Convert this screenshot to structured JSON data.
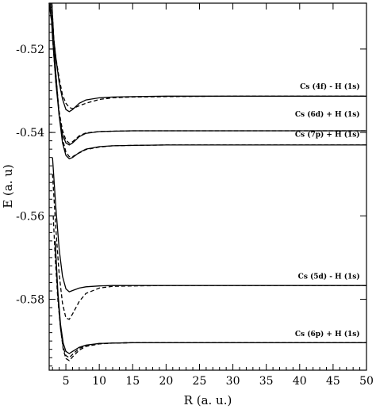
{
  "chart_data": {
    "type": "line",
    "xlabel": "R (a. u.)",
    "ylabel": "E (a. u)",
    "xlim": [
      2.5,
      50
    ],
    "ylim": [
      -0.597,
      -0.509
    ],
    "x_ticks": [
      5,
      10,
      15,
      20,
      25,
      30,
      35,
      40,
      45,
      50
    ],
    "x_tick_labels": [
      "5",
      "10",
      "15",
      "20",
      "25",
      "30",
      "35",
      "40",
      "45",
      "50"
    ],
    "y_ticks": [
      -0.52,
      -0.54,
      -0.56,
      -0.58
    ],
    "y_tick_labels": [
      "-0.52",
      "-0.54",
      "-0.56",
      "-0.58"
    ],
    "annotations": [
      {
        "text": "Cs (4f) - H (1s)",
        "x": 49,
        "y": -0.5295
      },
      {
        "text": "Cs (6d) + H (1s)",
        "x": 49,
        "y": -0.5362
      },
      {
        "text": "Cs (7p) + H (1s)",
        "x": 49,
        "y": -0.541
      },
      {
        "text": "Cs (5d) - H (1s)",
        "x": 49,
        "y": -0.575
      },
      {
        "text": "Cs (6p) + H (1s)",
        "x": 49,
        "y": -0.5888
      }
    ],
    "series": [
      {
        "style": "solid",
        "x": [
          2.5,
          3,
          3.5,
          4,
          4.5,
          5,
          5.5,
          6,
          7,
          8,
          10,
          12,
          15,
          20,
          30,
          40,
          50
        ],
        "y": [
          -0.509,
          -0.515,
          -0.522,
          -0.528,
          -0.532,
          -0.5345,
          -0.535,
          -0.5345,
          -0.533,
          -0.5322,
          -0.5317,
          -0.5315,
          -0.5314,
          -0.5313,
          -0.5313,
          -0.5313,
          -0.5313
        ]
      },
      {
        "style": "dashed",
        "x": [
          2.5,
          3,
          3.5,
          4,
          4.5,
          5,
          5.5,
          6,
          7,
          8,
          10,
          12,
          15,
          20,
          30,
          40,
          50
        ],
        "y": [
          -0.509,
          -0.515,
          -0.522,
          -0.527,
          -0.531,
          -0.533,
          -0.534,
          -0.5343,
          -0.5336,
          -0.533,
          -0.5321,
          -0.5317,
          -0.5315,
          -0.5314,
          -0.5313,
          -0.5313,
          -0.5313
        ]
      },
      {
        "style": "solid",
        "x": [
          2.7,
          3,
          3.5,
          4,
          4.5,
          5,
          5.5,
          6,
          7,
          8,
          10,
          12,
          15,
          20,
          30,
          40,
          50
        ],
        "y": [
          -0.509,
          -0.517,
          -0.528,
          -0.536,
          -0.5405,
          -0.5425,
          -0.543,
          -0.5425,
          -0.541,
          -0.5402,
          -0.5398,
          -0.5397,
          -0.5396,
          -0.5396,
          -0.5396,
          -0.5396,
          -0.5396
        ]
      },
      {
        "style": "dashed",
        "x": [
          2.7,
          3,
          3.5,
          4,
          4.5,
          5,
          5.5,
          6,
          7,
          8,
          10,
          12,
          15,
          20,
          30,
          40,
          50
        ],
        "y": [
          -0.509,
          -0.517,
          -0.528,
          -0.535,
          -0.5395,
          -0.5418,
          -0.5426,
          -0.5422,
          -0.5408,
          -0.5401,
          -0.5398,
          -0.5397,
          -0.5396,
          -0.5396,
          -0.5396,
          -0.5396,
          -0.5396
        ]
      },
      {
        "style": "solid",
        "x": [
          2.9,
          3.2,
          3.5,
          4,
          4.5,
          5,
          5.5,
          6,
          7,
          8,
          10,
          12,
          15,
          20,
          30,
          40,
          50
        ],
        "y": [
          -0.509,
          -0.518,
          -0.526,
          -0.536,
          -0.5425,
          -0.5455,
          -0.5463,
          -0.546,
          -0.5448,
          -0.544,
          -0.5434,
          -0.5432,
          -0.5431,
          -0.543,
          -0.543,
          -0.543,
          -0.543
        ]
      },
      {
        "style": "dashed",
        "x": [
          2.9,
          3.2,
          3.5,
          4,
          4.5,
          5,
          5.5,
          6,
          7,
          8,
          10,
          12,
          15,
          20,
          30,
          40,
          50
        ],
        "y": [
          -0.509,
          -0.518,
          -0.526,
          -0.5355,
          -0.5415,
          -0.5447,
          -0.5458,
          -0.5458,
          -0.5449,
          -0.5441,
          -0.5435,
          -0.5432,
          -0.5431,
          -0.543,
          -0.543,
          -0.543,
          -0.543
        ]
      },
      {
        "style": "solid",
        "x": [
          3,
          3.5,
          4,
          4.5,
          5,
          5.5,
          6,
          7,
          8,
          10,
          12,
          15,
          20,
          30,
          40,
          50
        ],
        "y": [
          -0.546,
          -0.558,
          -0.568,
          -0.5745,
          -0.5775,
          -0.5782,
          -0.5779,
          -0.5773,
          -0.577,
          -0.5768,
          -0.5767,
          -0.5767,
          -0.5767,
          -0.5767,
          -0.5767,
          -0.5767
        ]
      },
      {
        "style": "dashed",
        "x": [
          3,
          3.5,
          4,
          4.5,
          5,
          5.5,
          6,
          7,
          8,
          10,
          12,
          15,
          20,
          30,
          40,
          50
        ],
        "y": [
          -0.55,
          -0.563,
          -0.574,
          -0.581,
          -0.5845,
          -0.5848,
          -0.5835,
          -0.5805,
          -0.5786,
          -0.5773,
          -0.5769,
          -0.5768,
          -0.5767,
          -0.5767,
          -0.5767,
          -0.5767
        ]
      },
      {
        "style": "solid",
        "x": [
          3.4,
          3.8,
          4.2,
          4.6,
          5,
          5.5,
          6,
          7,
          8,
          10,
          12,
          15,
          20,
          30,
          40,
          50
        ],
        "y": [
          -0.566,
          -0.578,
          -0.586,
          -0.5905,
          -0.5925,
          -0.593,
          -0.5925,
          -0.5915,
          -0.591,
          -0.5906,
          -0.5905,
          -0.5904,
          -0.5904,
          -0.5904,
          -0.5904,
          -0.5904
        ]
      },
      {
        "style": "dashed",
        "x": [
          3.4,
          3.8,
          4.2,
          4.6,
          5,
          5.5,
          6,
          7,
          8,
          10,
          12,
          15,
          20,
          30,
          40,
          50
        ],
        "y": [
          -0.567,
          -0.579,
          -0.587,
          -0.592,
          -0.5942,
          -0.5947,
          -0.5938,
          -0.5922,
          -0.5913,
          -0.5907,
          -0.5905,
          -0.5904,
          -0.5904,
          -0.5904,
          -0.5904,
          -0.5904
        ]
      },
      {
        "style": "dashed",
        "x": [
          3.1,
          3.4,
          3.8,
          4.2,
          4.6,
          5,
          5.5,
          6,
          7,
          8,
          10,
          12,
          15,
          20,
          30,
          40,
          50
        ],
        "y": [
          -0.56,
          -0.57,
          -0.58,
          -0.587,
          -0.5915,
          -0.5935,
          -0.594,
          -0.5932,
          -0.5918,
          -0.5911,
          -0.5906,
          -0.5905,
          -0.5904,
          -0.5904,
          -0.5904,
          -0.5904,
          -0.5904
        ]
      }
    ]
  }
}
